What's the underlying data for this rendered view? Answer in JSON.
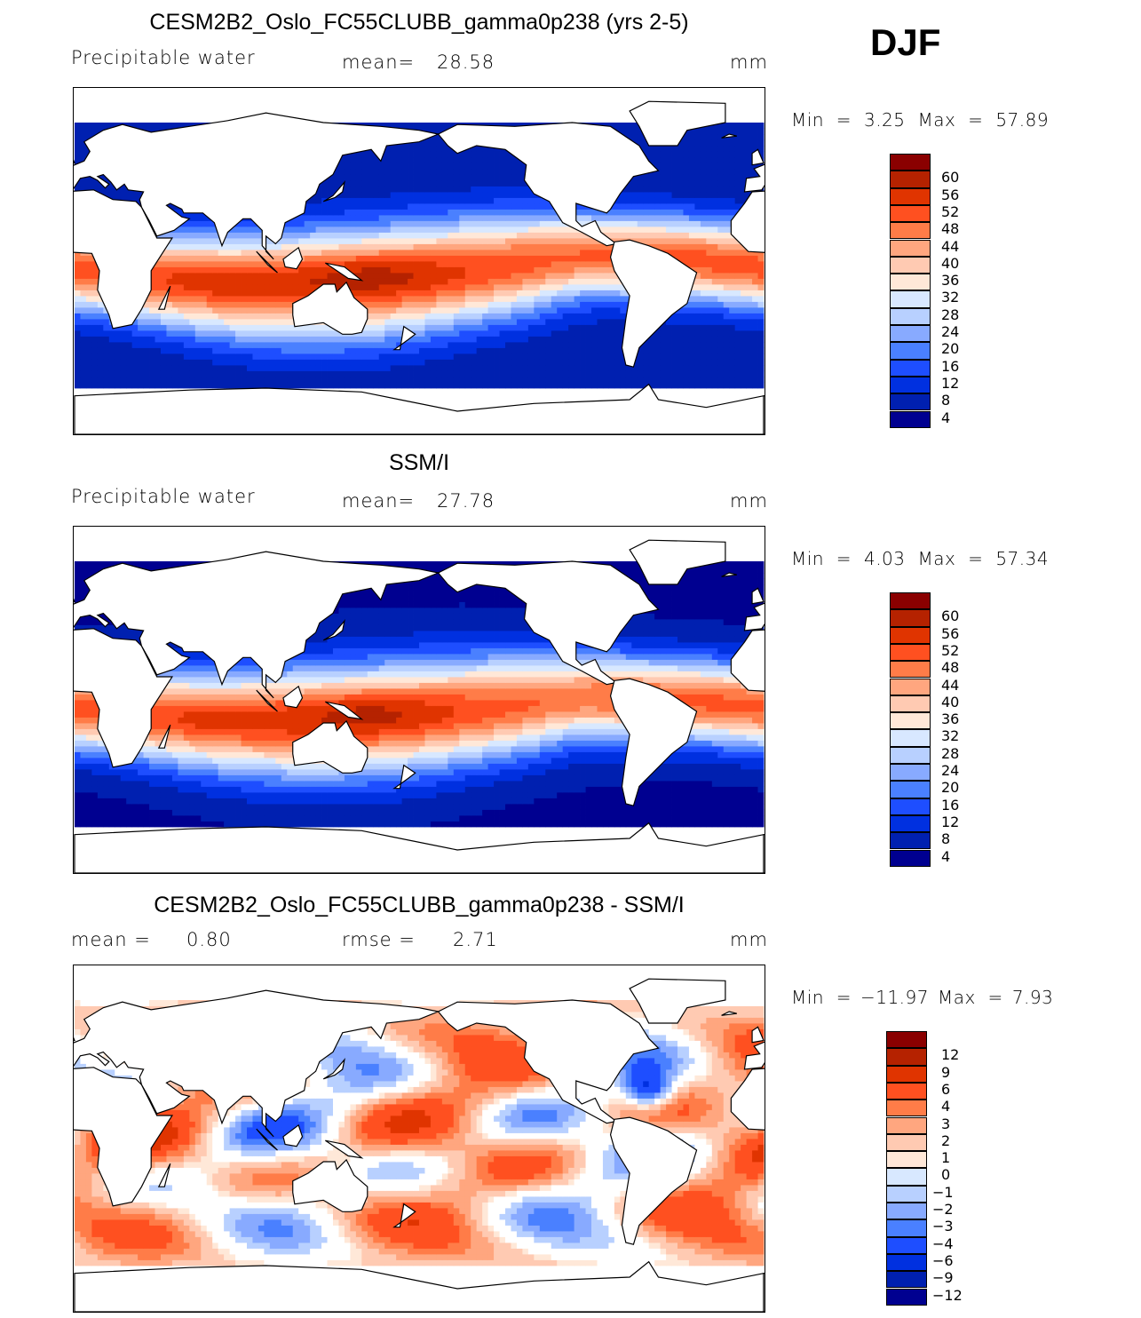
{
  "season": "DJF",
  "colors": [
    "#8a0000",
    "#b52200",
    "#e03400",
    "#ff5020",
    "#ff7c48",
    "#ffa67f",
    "#ffcab2",
    "#ffe8d8",
    "#d8e8ff",
    "#b8d0ff",
    "#88aaff",
    "#4a80ff",
    "#1e4eff",
    "#0030e0",
    "#0020b0",
    "#000090"
  ],
  "panels": [
    {
      "title": "CESM2B2_Oslo_FC55CLUBB_gamma0p238 (yrs 2-5)",
      "left_label": "Precipitable  water",
      "stat1_label": "mean=",
      "stat1_value": "28.58",
      "units": "mm",
      "min_label": "Min  =",
      "min_value": "3.25",
      "max_label": "Max  =",
      "max_value": "57.89",
      "levels": [
        "60",
        "56",
        "52",
        "48",
        "44",
        "40",
        "36",
        "32",
        "28",
        "24",
        "20",
        "16",
        "12",
        "8",
        "4"
      ]
    },
    {
      "title": "SSM/I",
      "left_label": "Precipitable  water",
      "stat1_label": "mean=",
      "stat1_value": "27.78",
      "units": "mm",
      "min_label": "Min  =",
      "min_value": "4.03",
      "max_label": "Max  =",
      "max_value": "57.34",
      "levels": [
        "60",
        "56",
        "52",
        "48",
        "44",
        "40",
        "36",
        "32",
        "28",
        "24",
        "20",
        "16",
        "12",
        "8",
        "4"
      ]
    },
    {
      "title": "CESM2B2_Oslo_FC55CLUBB_gamma0p238 - SSM/I",
      "left_label": "mean  =",
      "left_value": "0.80",
      "stat1_label": "rmse  =",
      "stat1_value": "2.71",
      "units": "mm",
      "min_label": "Min  =",
      "min_value": "−11.97",
      "max_label": "Max  =",
      "max_value": "7.93",
      "levels": [
        "12",
        "9",
        "6",
        "4",
        "3",
        "2",
        "1",
        "0",
        "−1",
        "−2",
        "−3",
        "−4",
        "−6",
        "−9",
        "−12"
      ]
    }
  ]
}
